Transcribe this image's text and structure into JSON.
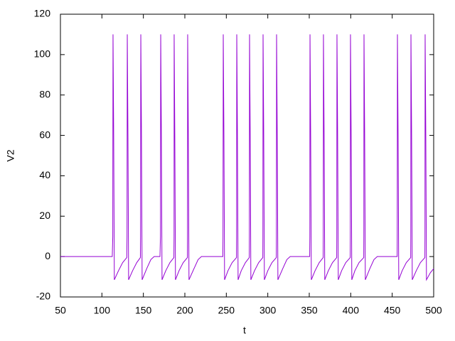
{
  "chart_data": {
    "type": "line",
    "xlabel": "t",
    "ylabel": "V2",
    "x": [
      50,
      112.5,
      113.1,
      113.4,
      114.2,
      115,
      120,
      125,
      130,
      130.3,
      130.6,
      131.4,
      132.2,
      137,
      142,
      146.4,
      146.6,
      146.9,
      147.7,
      148.5,
      154,
      159,
      163,
      170,
      170.6,
      170.9,
      171.7,
      172.5,
      177,
      182,
      186.8,
      187,
      187.1,
      187.9,
      188.7,
      193,
      198,
      203.1,
      203.2,
      203.4,
      204.2,
      205,
      211,
      216,
      220,
      245.8,
      246,
      246.3,
      247.1,
      247.9,
      252,
      257,
      262.3,
      262.4,
      262.6,
      263.4,
      264.2,
      268,
      273,
      277.7,
      277.8,
      278,
      278.8,
      279.6,
      284,
      289,
      294,
      294.1,
      294.3,
      295.1,
      295.9,
      300,
      305,
      310.3,
      310.4,
      310.6,
      311.4,
      312.2,
      318,
      323,
      327,
      350.5,
      350.7,
      350.9,
      351.7,
      352.5,
      357,
      362,
      366.8,
      366.9,
      367.1,
      367.9,
      368.7,
      373,
      378,
      383.1,
      383.2,
      383.4,
      384.2,
      385,
      389,
      394,
      399.4,
      399.5,
      399.7,
      400.5,
      401.3,
      405,
      410,
      415.7,
      415.8,
      416,
      416.8,
      417.6,
      423,
      428,
      432,
      456,
      456.1,
      456.3,
      457.1,
      457.9,
      462,
      467,
      472.3,
      472.4,
      472.6,
      473.4,
      474.2,
      479,
      484,
      489.4,
      489.5,
      489.7,
      490.5,
      491.3,
      496,
      500
    ],
    "series": [
      {
        "color": "#9400d3",
        "values": [
          0,
          0,
          10,
          110,
          60,
          -11.5,
          -7,
          -3,
          -0.5,
          10,
          110,
          60,
          -11.5,
          -7,
          -3,
          -0.5,
          10,
          110,
          60,
          -11.5,
          -6,
          -1.5,
          0,
          0,
          10,
          110,
          60,
          -11.5,
          -7,
          -3,
          -0.5,
          10,
          110,
          60,
          -11.5,
          -7,
          -3,
          -0.5,
          10,
          110,
          60,
          -11.5,
          -6,
          -1.5,
          0,
          0,
          10,
          110,
          60,
          -11.5,
          -7,
          -3,
          -0.5,
          10,
          110,
          60,
          -11.5,
          -7,
          -3,
          -0.5,
          10,
          110,
          60,
          -11.5,
          -7,
          -3,
          -0.5,
          10,
          110,
          60,
          -11.5,
          -7,
          -3,
          -0.5,
          10,
          110,
          60,
          -11.5,
          -6,
          -1.5,
          0,
          0,
          10,
          110,
          60,
          -11.5,
          -7,
          -3,
          -0.5,
          10,
          110,
          60,
          -11.5,
          -7,
          -3,
          -0.5,
          10,
          110,
          60,
          -11.5,
          -7,
          -3,
          -0.5,
          10,
          110,
          60,
          -11.5,
          -7,
          -3,
          -0.5,
          10,
          110,
          60,
          -11.5,
          -6,
          -1.5,
          0,
          0,
          10,
          110,
          60,
          -11.5,
          -7,
          -3,
          -0.5,
          10,
          110,
          60,
          -11.5,
          -7,
          -3,
          -0.5,
          10,
          110,
          60,
          -11.5,
          -8,
          -6
        ]
      }
    ],
    "xlim": [
      50,
      500
    ],
    "xticks": [
      50,
      100,
      150,
      200,
      250,
      300,
      350,
      400,
      450,
      500
    ],
    "ylim": [
      -20,
      120
    ],
    "yticks": [
      -20,
      0,
      20,
      40,
      60,
      80,
      100,
      120
    ]
  }
}
